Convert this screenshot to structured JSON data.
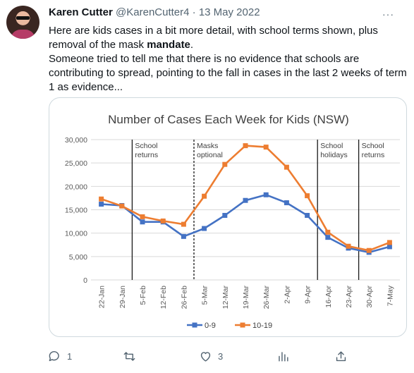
{
  "tweet": {
    "author_name": "Karen Cutter",
    "handle": "@KarenCutter4",
    "separator": "·",
    "date": "13 May 2022",
    "more_label": "···",
    "text_line1_part1": "Here are kids cases in a bit more detail, with school terms shown, plus removal of the mask ",
    "text_line1_bold": "mandate",
    "text_line1_part2": ".",
    "text_line2": "Someone tried to tell me that there is no evidence that schools are contributing to spread, pointing to the fall in cases in the last 2 weeks of term 1 as evidence..."
  },
  "actions": {
    "reply_icon": "reply-icon",
    "reply_count": "1",
    "retweet_icon": "retweet-icon",
    "like_icon": "heart-icon",
    "like_count": "3",
    "views_icon": "analytics-icon",
    "share_icon": "share-icon"
  },
  "chart_data": {
    "type": "line",
    "title": "Number of Cases Each Week for Kids (NSW)",
    "categories": [
      "22-Jan",
      "29-Jan",
      "5-Feb",
      "12-Feb",
      "26-Feb",
      "5-Mar",
      "12-Mar",
      "19-Mar",
      "26-Mar",
      "2-Apr",
      "9-Apr",
      "16-Apr",
      "23-Apr",
      "30-Apr",
      "7-May"
    ],
    "series": [
      {
        "name": "0-9",
        "color": "#4472c4",
        "values": [
          16200,
          15900,
          12400,
          12400,
          9300,
          11000,
          13800,
          17000,
          18200,
          16500,
          13800,
          9100,
          6800,
          5900,
          7100
        ]
      },
      {
        "name": "10-19",
        "color": "#ed7d31",
        "values": [
          17300,
          15800,
          13500,
          12600,
          11900,
          17900,
          24700,
          28700,
          28400,
          24100,
          18000,
          10200,
          7200,
          6300,
          8000
        ]
      }
    ],
    "ylim": [
      0,
      30000
    ],
    "yticks": [
      0,
      5000,
      10000,
      15000,
      20000,
      25000,
      30000
    ],
    "ytick_labels": [
      "0",
      "5,000",
      "10,000",
      "15,000",
      "20,000",
      "25,000",
      "30,000"
    ],
    "grid": true,
    "legend_position": "bottom",
    "annotations": [
      {
        "after_category_index": 1,
        "style": "solid",
        "lines": [
          "School",
          "returns"
        ]
      },
      {
        "after_category_index": 4,
        "style": "dashed",
        "lines": [
          "Masks",
          "optional"
        ]
      },
      {
        "after_category_index": 10,
        "style": "solid",
        "lines": [
          "School",
          "holidays"
        ]
      },
      {
        "after_category_index": 12,
        "style": "solid",
        "lines": [
          "School",
          "returns"
        ]
      }
    ]
  }
}
